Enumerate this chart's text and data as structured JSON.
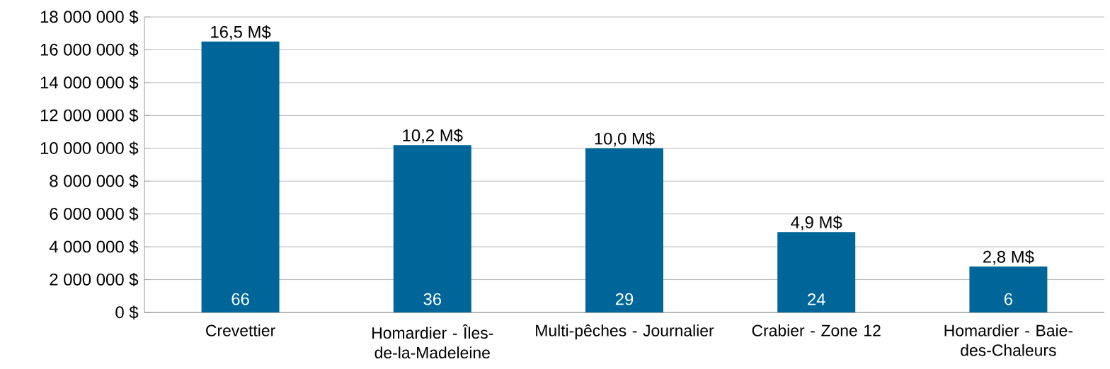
{
  "chart_data": {
    "type": "bar",
    "categories": [
      "Crevettier",
      "Homardier - Îles-de-la-Madeleine",
      "Multi-pêches - Journalier",
      "Crabier - Zone 12",
      "Homardier - Baie-des-Chaleurs"
    ],
    "values": [
      16500000,
      10200000,
      10000000,
      4900000,
      2800000
    ],
    "value_labels": [
      "16,5 M$",
      "10,2 M$",
      "10,0 M$",
      "4,9 M$",
      "2,8 M$"
    ],
    "color": "#006699",
    "ylim": [
      0,
      18000000
    ],
    "yticks": [
      {
        "value": 0,
        "label": "0 $"
      },
      {
        "value": 2000000,
        "label": "2 000 000 $"
      },
      {
        "value": 4000000,
        "label": "4 000 000 $"
      },
      {
        "value": 6000000,
        "label": "6 000 000 $"
      },
      {
        "value": 8000000,
        "label": "8 000 000 $"
      },
      {
        "value": 10000000,
        "label": "10 000 000 $"
      },
      {
        "value": 12000000,
        "label": "12 000 000 $"
      },
      {
        "value": 14000000,
        "label": "14 000 000 $"
      },
      {
        "value": 16000000,
        "label": "16 000 000 $"
      },
      {
        "value": 18000000,
        "label": "18 000 000 $"
      }
    ],
    "grid": "y",
    "annotations": [
      "66",
      "36",
      "29",
      "24",
      "6"
    ]
  }
}
